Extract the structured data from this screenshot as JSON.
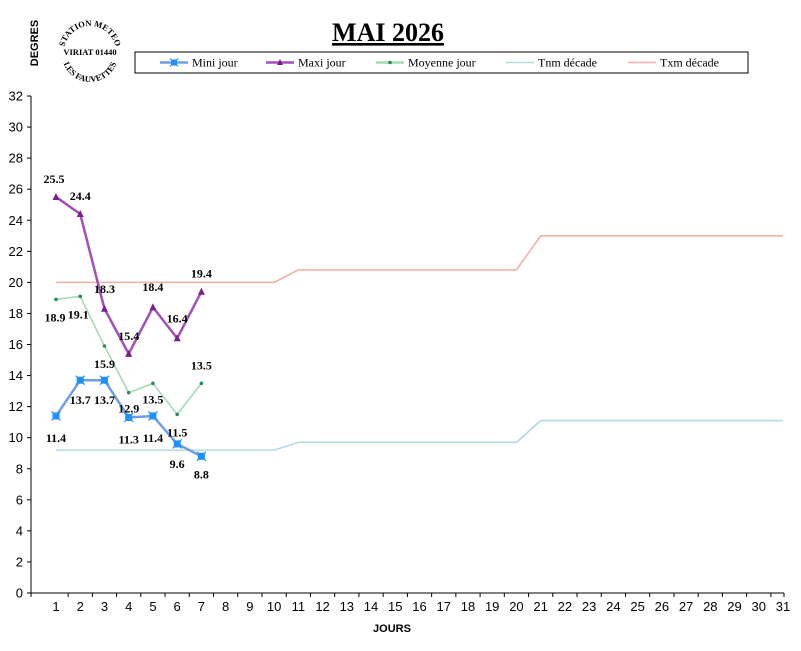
{
  "chart_data": {
    "type": "line",
    "title": "MAI 2026",
    "xlabel": "JOURS",
    "ylabel": "DEGRES",
    "ylim": [
      0,
      32
    ],
    "yticks": [
      0,
      2,
      4,
      6,
      8,
      10,
      12,
      14,
      16,
      18,
      20,
      22,
      24,
      26,
      28,
      30,
      32
    ],
    "x": [
      1,
      2,
      3,
      4,
      5,
      6,
      7,
      8,
      9,
      10,
      11,
      12,
      13,
      14,
      15,
      16,
      17,
      18,
      19,
      20,
      21,
      22,
      23,
      24,
      25,
      26,
      27,
      28,
      29,
      30,
      31
    ],
    "grid": false,
    "legend_position": "top",
    "stamp": {
      "line1": "STATION METEO",
      "line2": "VIRIAT 01440",
      "line3": "LES FAUVETTES"
    },
    "series": [
      {
        "name": "Mini jour",
        "color": "#6f9ee8",
        "marker": "square",
        "marker_color": "#1e90ff",
        "x": [
          1,
          2,
          3,
          4,
          5,
          6,
          7
        ],
        "values": [
          11.4,
          13.7,
          13.7,
          11.3,
          11.4,
          9.6,
          8.8
        ],
        "labels": [
          "11.4",
          "13.7",
          "13.7",
          "11.3",
          "11.4",
          "9.6",
          "8.8"
        ]
      },
      {
        "name": "Maxi jour",
        "color": "#a34fb8",
        "marker": "triangle",
        "marker_color": "#7a1f8f",
        "x": [
          1,
          2,
          3,
          4,
          5,
          6,
          7
        ],
        "values": [
          25.5,
          24.4,
          18.3,
          15.4,
          18.4,
          16.4,
          19.4
        ],
        "labels": [
          "25.5",
          "24.4",
          "18.3",
          "15.4",
          "18.4",
          "16.4",
          "19.4"
        ]
      },
      {
        "name": "Moyenne jour",
        "color": "#a8d8b4",
        "marker": "dot",
        "marker_color": "#2e8b57",
        "x": [
          1,
          2,
          3,
          4,
          5,
          6,
          7
        ],
        "values": [
          18.9,
          19.1,
          15.9,
          12.9,
          13.5,
          11.5,
          13.5
        ],
        "labels": [
          "18.9",
          "19.1",
          "15.9",
          "12.9",
          "13.5",
          "11.5",
          "13.5"
        ]
      },
      {
        "name": "Tnm décade",
        "color": "#b3d9e3",
        "x": [
          1,
          10,
          11,
          20,
          21,
          31
        ],
        "values": [
          9.2,
          9.2,
          9.7,
          9.7,
          11.1,
          11.1
        ]
      },
      {
        "name": "Txm décade",
        "color": "#f2b0aa",
        "x": [
          1,
          10,
          11,
          20,
          21,
          31
        ],
        "values": [
          20.0,
          20.0,
          20.8,
          20.8,
          23.0,
          23.0
        ]
      }
    ]
  }
}
